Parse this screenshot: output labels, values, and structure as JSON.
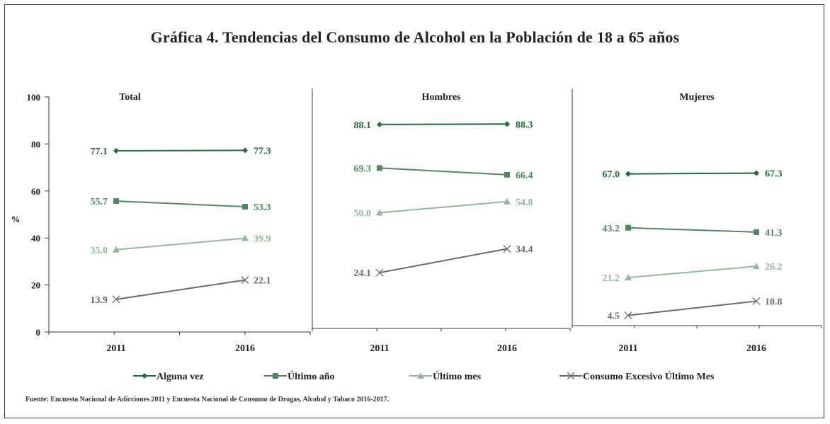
{
  "title": "Gráfica 4. Tendencias del Consumo de Alcohol en la Población de 18 a 65 años",
  "source": "Fuente: Encuesta Nacional de Adicciones 2011 y Encuesta Nacional de Consumo de Drogas, Alcohol y Tabaco 2016-2017.",
  "colors": {
    "alguna_vez": "#1e6e3c",
    "ultimo_ano": "#4e8a5e",
    "ultimo_mes": "#93b89c",
    "excesivo": "#6b6b6b"
  },
  "chart_data": {
    "type": "line",
    "ylabel": "%",
    "ylim": [
      0,
      100
    ],
    "yticks": [
      "0",
      "20",
      "40",
      "60",
      "80",
      "100"
    ],
    "x": [
      "2011",
      "2016"
    ],
    "grid": false,
    "legend_position": "bottom",
    "legend": [
      "Alguna vez",
      "Último año",
      "Último mes",
      "Consumo Excesivo Último Mes"
    ],
    "panels": [
      {
        "name": "Total",
        "series": [
          {
            "name": "Alguna vez",
            "marker": "diamond",
            "values": [
              77.1,
              77.3
            ],
            "labels": [
              "77.1",
              "77.3"
            ]
          },
          {
            "name": "Último año",
            "marker": "square",
            "values": [
              55.7,
              53.3
            ],
            "labels": [
              "55.7",
              "53.3"
            ]
          },
          {
            "name": "Último mes",
            "marker": "triangle",
            "values": [
              35.0,
              39.9
            ],
            "labels": [
              "35.0",
              "39.9"
            ]
          },
          {
            "name": "Consumo Excesivo Último Mes",
            "marker": "x",
            "values": [
              13.9,
              22.1
            ],
            "labels": [
              "13.9",
              "22.1"
            ]
          }
        ]
      },
      {
        "name": "Hombres",
        "series": [
          {
            "name": "Alguna vez",
            "marker": "diamond",
            "values": [
              88.1,
              88.3
            ],
            "labels": [
              "88.1",
              "88.3"
            ]
          },
          {
            "name": "Último año",
            "marker": "square",
            "values": [
              69.3,
              66.4
            ],
            "labels": [
              "69.3",
              "66.4"
            ]
          },
          {
            "name": "Último mes",
            "marker": "triangle",
            "values": [
              50.0,
              54.8
            ],
            "labels": [
              "50.0",
              "54.8"
            ]
          },
          {
            "name": "Consumo Excesivo Último Mes",
            "marker": "x",
            "values": [
              24.1,
              34.4
            ],
            "labels": [
              "24.1",
              "34.4"
            ]
          }
        ]
      },
      {
        "name": "Mujeres",
        "series": [
          {
            "name": "Alguna vez",
            "marker": "diamond",
            "values": [
              67.0,
              67.3
            ],
            "labels": [
              "67.0",
              "67.3"
            ]
          },
          {
            "name": "Último año",
            "marker": "square",
            "values": [
              43.2,
              41.3
            ],
            "labels": [
              "43.2",
              "41.3"
            ]
          },
          {
            "name": "Último mes",
            "marker": "triangle",
            "values": [
              21.2,
              26.2
            ],
            "labels": [
              "21.2",
              "26.2"
            ]
          },
          {
            "name": "Consumo Excesivo Último Mes",
            "marker": "x",
            "values": [
              4.5,
              10.8
            ],
            "labels": [
              "4.5",
              "10.8"
            ]
          }
        ]
      }
    ]
  }
}
